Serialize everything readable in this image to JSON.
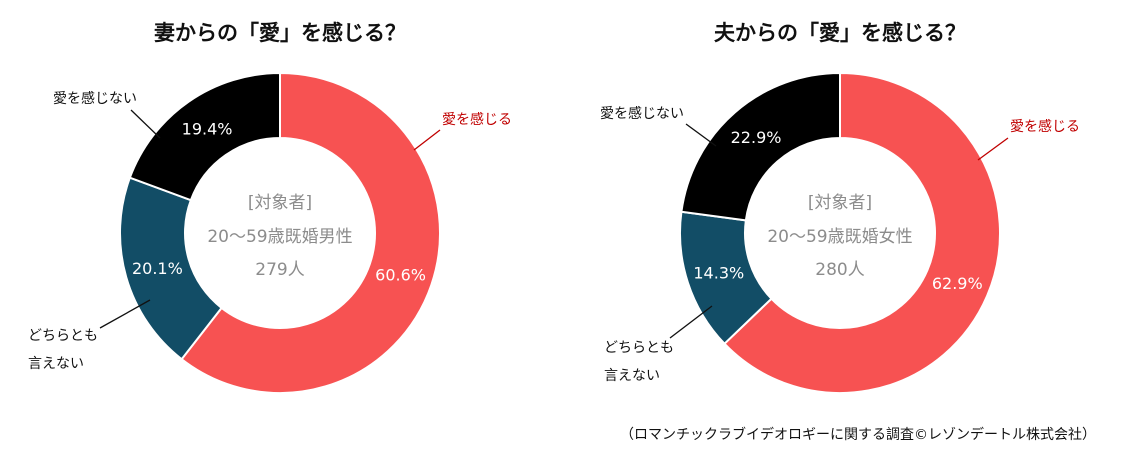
{
  "chart_data": [
    {
      "type": "pie",
      "title": "妻からの「愛」を感じる？",
      "center_lines": [
        "[対象者]",
        "20～59歳既婚男性",
        "279人"
      ],
      "categories": [
        "愛を感じる",
        "どちらとも言えない",
        "愛を感じない"
      ],
      "values": [
        60.6,
        20.1,
        19.4
      ],
      "value_labels": [
        "60.6%",
        "20.1%",
        "19.4%"
      ],
      "label_lines": [
        [
          "愛を感じる"
        ],
        [
          "どちらとも",
          "言えない"
        ],
        [
          "愛を感じない"
        ]
      ],
      "colors": [
        "#f75252",
        "#124d66",
        "#000000"
      ],
      "legend": "none"
    },
    {
      "type": "pie",
      "title": "夫からの「愛」を感じる？",
      "center_lines": [
        "[対象者]",
        "20～59歳既婚女性",
        "280人"
      ],
      "categories": [
        "愛を感じる",
        "どちらとも言えない",
        "愛を感じない"
      ],
      "values": [
        62.9,
        14.3,
        22.9
      ],
      "value_labels": [
        "62.9%",
        "14.3%",
        "22.9%"
      ],
      "label_lines": [
        [
          "愛を感じる"
        ],
        [
          "どちらとも",
          "言えない"
        ],
        [
          "愛を感じない"
        ]
      ],
      "colors": [
        "#f75252",
        "#124d66",
        "#000000"
      ],
      "legend": "none"
    }
  ],
  "source": "（ロマンチックラブイデオロギーに関する調査©レゾンデートル株式会社）"
}
